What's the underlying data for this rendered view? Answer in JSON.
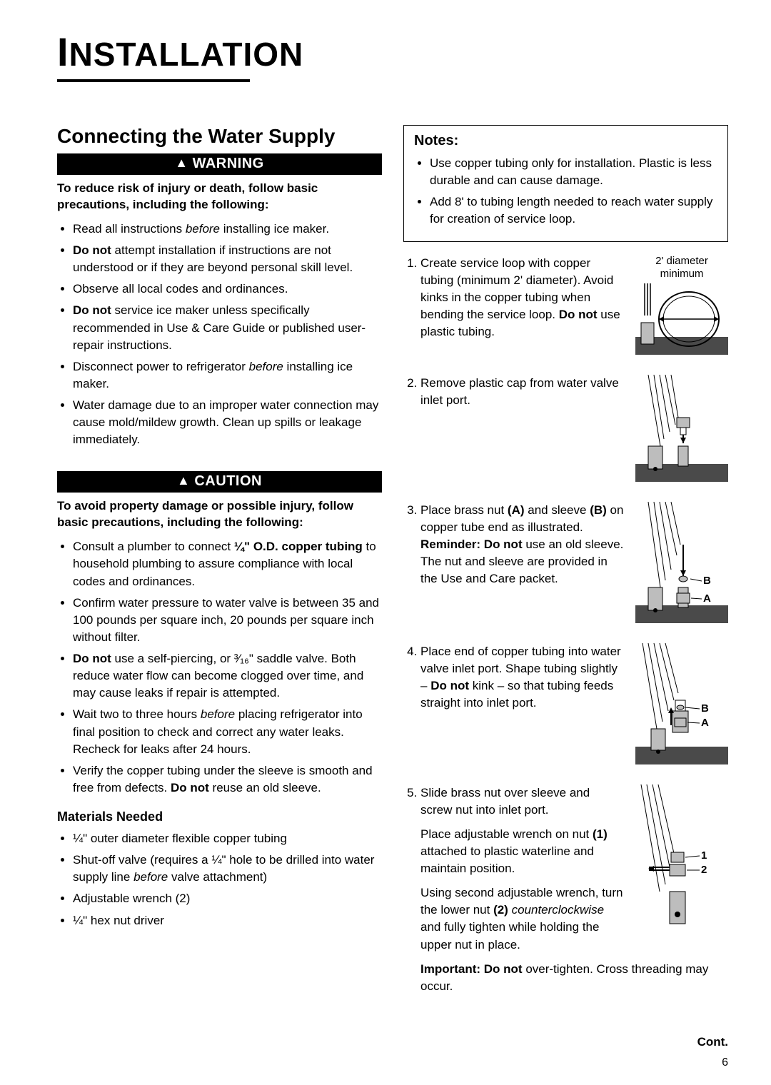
{
  "page": {
    "title_big": "I",
    "title_rest": "NSTALLATION",
    "cont": "Cont.",
    "number": "6"
  },
  "left": {
    "heading": "Connecting the Water Supply",
    "warning_bar": "WARNING",
    "warning_lead": "To reduce risk of injury or death, follow basic precautions, including the following:",
    "warning_items": [
      "Read all instructions <em>before</em> installing ice maker.",
      "<b>Do not</b> attempt installation if instructions are not understood or if they are beyond personal skill level.",
      "Observe all local codes and ordinances.",
      "<b>Do not</b> service ice maker unless specifically recommended in Use & Care Guide or published user-repair instructions.",
      "Disconnect power to refrigerator <em>before</em> installing ice maker.",
      "Water damage due to an improper water connection may cause mold/mildew growth. Clean up spills or leakage immediately."
    ],
    "caution_bar": "CAUTION",
    "caution_lead": "To avoid property damage or possible injury, follow basic precautions, including the following:",
    "caution_items": [
      "Consult a plumber to connect <b>¼\" O.D. copper tubing</b> to household plumbing to assure compliance with local codes and ordinances.",
      "Confirm water pressure to water valve is between 35 and 100 pounds per square inch, 20 pounds per square inch without filter.",
      "<b>Do not</b> use a self-piercing, or ³⁄₁₆\" saddle valve. Both reduce water flow can become clogged over time, and may cause leaks if repair is attempted.",
      "Wait two to three hours <em>before</em> placing refrigerator into final position to check and correct any water leaks. Recheck for leaks after 24 hours.",
      "Verify the copper tubing under the sleeve is smooth and free from defects. <b>Do not</b> reuse an old sleeve."
    ],
    "materials_head": "Materials Needed",
    "materials_items": [
      "¼\" outer diameter flexible copper tubing",
      "Shut-off valve (requires a ¼\" hole to be drilled into water supply line <em>before</em> valve attachment)",
      "Adjustable wrench (2)",
      "¼\" hex nut driver"
    ]
  },
  "right": {
    "notes_title": "Notes:",
    "notes_items": [
      "Use copper tubing only for installation. Plastic is less durable and can cause damage.",
      "Add 8' to tubing length needed to reach water supply for creation of service loop."
    ],
    "step1_text": "Create service loop with copper tubing (minimum 2' diameter). Avoid kinks in the copper tubing when bending the service loop. <b>Do not</b> use plastic tubing.",
    "step1_caption": "2' diameter minimum",
    "step2_text": "Remove plastic cap from water valve inlet port.",
    "step3_text": "Place brass nut <b>(A)</b> and sleeve <b>(B)</b> on copper tube end as illustrated. <b>Reminder: Do not</b> use an old sleeve. The nut and sleeve are provided in the Use and Care packet.",
    "step4_text": "Place end of copper tubing into water valve inlet port. Shape tubing slightly – <b>Do not</b> kink – so that tubing feeds straight into inlet port.",
    "step5_text": "Slide brass nut over sleeve and screw nut into inlet port.",
    "step5_para2": "Place adjustable wrench on nut <b>(1)</b> attached to plastic waterline and maintain position.",
    "step5_para3": "Using second adjustable wrench, turn the lower nut <b>(2)</b> <em>counterclockwise</em> and fully tighten while holding the upper nut in place.",
    "step5_important": "<b>Important: Do not</b> over-tighten. Cross threading may occur.",
    "label_A": "A",
    "label_B": "B",
    "label_1": "1",
    "label_2": "2"
  },
  "colors": {
    "black": "#000000",
    "white": "#ffffff",
    "gray_dark": "#4a4a4a",
    "gray_light": "#bdbdbd"
  }
}
